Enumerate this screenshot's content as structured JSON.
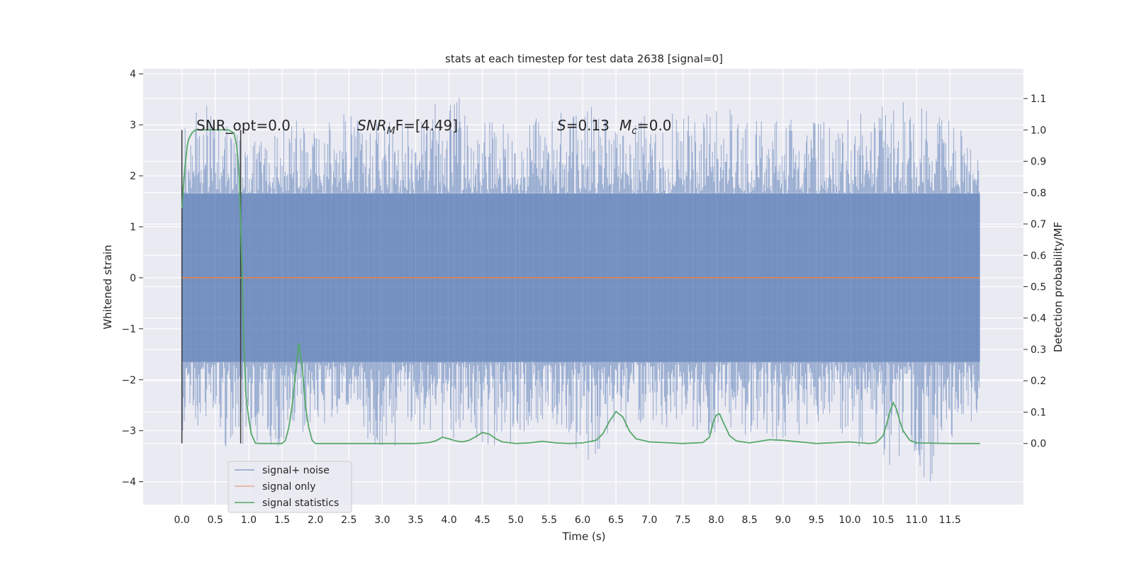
{
  "chart_data": {
    "type": "line",
    "title": "stats at each timestep for test data 2638 [signal=0]",
    "xlabel": "Time (s)",
    "ylabel": "Whitened strain",
    "y2label": "Detection probability/MF",
    "xlim": [
      -0.58,
      12.6
    ],
    "ylim": [
      -4.45,
      4.1
    ],
    "y2lim": [
      -0.195,
      1.195
    ],
    "grid": true,
    "legend_position": "lower-left",
    "xticks": [
      "0.0",
      "0.5",
      "1.0",
      "1.5",
      "2.0",
      "2.5",
      "3.0",
      "3.5",
      "4.0",
      "4.5",
      "5.0",
      "5.5",
      "6.0",
      "6.5",
      "7.0",
      "7.5",
      "8.0",
      "8.5",
      "9.0",
      "9.5",
      "10.0",
      "10.5",
      "11.0",
      "11.5"
    ],
    "yticks": [
      "4",
      "3",
      "2",
      "1",
      "0",
      "−1",
      "−2",
      "−3",
      "−4"
    ],
    "y2ticks": [
      "0.0",
      "0.1",
      "0.2",
      "0.3",
      "0.4",
      "0.5",
      "0.6",
      "0.7",
      "0.8",
      "0.9",
      "1.0",
      "1.1"
    ],
    "annotations": {
      "snr_opt": "SNR_opt=0.0",
      "snr_mf_sym": "SNR",
      "snr_mf_sub": "M",
      "snr_mf_rest": "F=[4.49]",
      "s_sym": "S",
      "s_val": "=0.13",
      "mc_sym": "M",
      "mc_sub": "c",
      "mc_val": "=0.0"
    },
    "vlines": [
      0.0,
      0.88
    ],
    "noise_envelope": {
      "name": "signal+ noise",
      "color": "#4c72b0",
      "t_start": 0.0,
      "t_end": 11.95,
      "core_upper": 1.65,
      "core_lower": -1.65,
      "peak_upper": [
        [
          0.0,
          2.8
        ],
        [
          0.25,
          3.65
        ],
        [
          0.5,
          3.2
        ],
        [
          1.0,
          2.6
        ],
        [
          1.7,
          3.15
        ],
        [
          2.2,
          3.35
        ],
        [
          2.7,
          3.1
        ],
        [
          3.2,
          3.1
        ],
        [
          3.5,
          3.25
        ],
        [
          4.05,
          3.7
        ],
        [
          4.5,
          3.05
        ],
        [
          5.0,
          3.15
        ],
        [
          5.6,
          3.2
        ],
        [
          6.05,
          3.5
        ],
        [
          6.5,
          3.1
        ],
        [
          7.05,
          3.35
        ],
        [
          7.5,
          3.3
        ],
        [
          7.75,
          3.15
        ],
        [
          8.1,
          3.35
        ],
        [
          8.5,
          3.2
        ],
        [
          9.0,
          3.2
        ],
        [
          9.6,
          3.05
        ],
        [
          10.0,
          3.3
        ],
        [
          10.4,
          3.3
        ],
        [
          10.75,
          3.65
        ],
        [
          11.2,
          3.3
        ],
        [
          11.6,
          3.1
        ],
        [
          11.95,
          2.45
        ]
      ],
      "peak_lower": [
        [
          0.0,
          -3.2
        ],
        [
          0.4,
          -2.8
        ],
        [
          0.7,
          -3.4
        ],
        [
          1.5,
          -3.3
        ],
        [
          2.0,
          -2.9
        ],
        [
          2.5,
          -2.8
        ],
        [
          3.0,
          -3.5
        ],
        [
          3.5,
          -3.0
        ],
        [
          4.0,
          -3.2
        ],
        [
          4.4,
          -3.15
        ],
        [
          4.8,
          -3.45
        ],
        [
          5.5,
          -2.9
        ],
        [
          6.15,
          -3.75
        ],
        [
          6.5,
          -3.1
        ],
        [
          7.0,
          -2.9
        ],
        [
          7.5,
          -3.0
        ],
        [
          7.9,
          -3.15
        ],
        [
          8.5,
          -3.1
        ],
        [
          9.0,
          -3.25
        ],
        [
          9.5,
          -3.0
        ],
        [
          10.0,
          -3.1
        ],
        [
          10.35,
          -3.9
        ],
        [
          10.9,
          -3.45
        ],
        [
          11.2,
          -4.1
        ],
        [
          11.5,
          -3.2
        ],
        [
          11.95,
          -2.7
        ]
      ]
    },
    "series": [
      {
        "name": "signal only",
        "color": "#dd8452",
        "axis": "left",
        "x": [
          0.0,
          11.95
        ],
        "y": [
          0.0,
          0.0
        ]
      },
      {
        "name": "signal statistics",
        "color": "#55a868",
        "axis": "right",
        "x": [
          0.0,
          0.04,
          0.08,
          0.1,
          0.15,
          0.2,
          0.3,
          0.4,
          0.5,
          0.6,
          0.7,
          0.78,
          0.82,
          0.86,
          0.9,
          0.93,
          0.96,
          1.0,
          1.04,
          1.1,
          1.2,
          1.3,
          1.4,
          1.5,
          1.55,
          1.6,
          1.65,
          1.7,
          1.75,
          1.8,
          1.85,
          1.9,
          1.95,
          2.0,
          2.2,
          2.5,
          3.0,
          3.5,
          3.7,
          3.8,
          3.9,
          4.0,
          4.1,
          4.2,
          4.3,
          4.4,
          4.5,
          4.6,
          4.7,
          4.8,
          5.0,
          5.2,
          5.4,
          5.6,
          5.8,
          6.0,
          6.2,
          6.3,
          6.4,
          6.5,
          6.6,
          6.7,
          6.8,
          7.0,
          7.5,
          7.8,
          7.9,
          7.95,
          8.0,
          8.05,
          8.1,
          8.2,
          8.3,
          8.5,
          8.8,
          9.0,
          9.5,
          10.0,
          10.1,
          10.3,
          10.4,
          10.5,
          10.55,
          10.6,
          10.65,
          10.7,
          10.75,
          10.8,
          10.9,
          11.0,
          11.5,
          11.95
        ],
        "y": [
          0.75,
          0.87,
          0.95,
          0.97,
          0.99,
          1.0,
          1.0,
          1.0,
          1.0,
          1.0,
          1.0,
          0.99,
          0.95,
          0.85,
          0.55,
          0.3,
          0.15,
          0.08,
          0.03,
          0.001,
          0.0,
          0.0,
          0.0,
          0.0,
          0.01,
          0.05,
          0.12,
          0.22,
          0.32,
          0.25,
          0.12,
          0.05,
          0.01,
          0.0,
          0.0,
          0.0,
          0.0,
          0.0,
          0.003,
          0.008,
          0.02,
          0.015,
          0.008,
          0.005,
          0.01,
          0.022,
          0.035,
          0.03,
          0.015,
          0.005,
          0.0,
          0.002,
          0.007,
          0.002,
          0.0,
          0.002,
          0.01,
          0.03,
          0.07,
          0.102,
          0.085,
          0.04,
          0.015,
          0.005,
          0.0,
          0.003,
          0.02,
          0.065,
          0.09,
          0.095,
          0.07,
          0.025,
          0.008,
          0.002,
          0.012,
          0.01,
          0.0,
          0.005,
          0.003,
          0.0,
          0.003,
          0.025,
          0.06,
          0.1,
          0.13,
          0.11,
          0.07,
          0.04,
          0.01,
          0.002,
          0.0,
          0.0
        ]
      }
    ]
  }
}
